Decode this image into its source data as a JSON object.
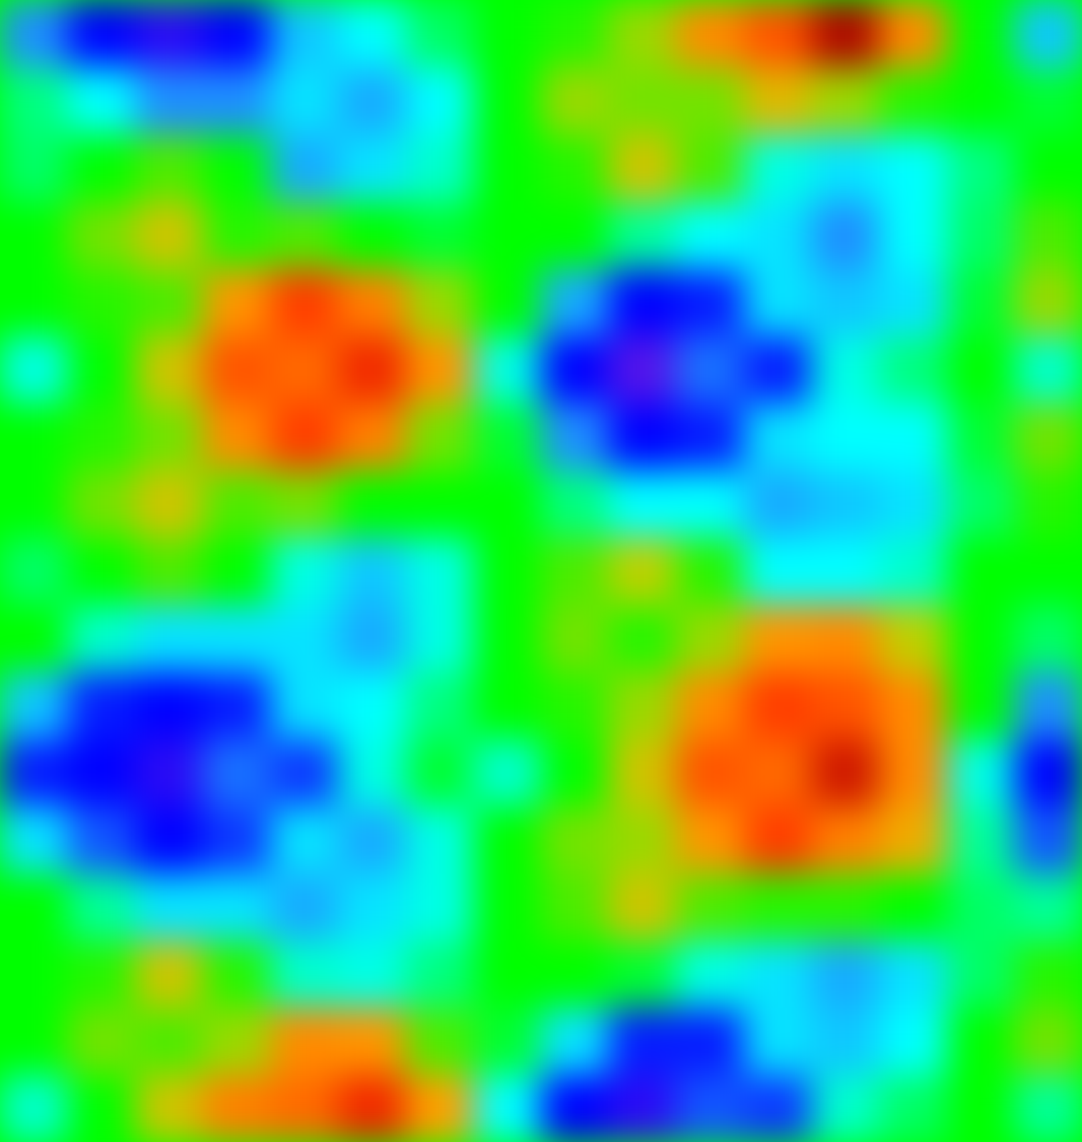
{
  "chart_data": {
    "type": "heatmap",
    "tick_labels": false,
    "zlim": [
      -1,
      1
    ],
    "values": [
      [
        -0.6,
        -0.85,
        -0.9,
        -0.85,
        -0.5,
        -0.4,
        -0.1,
        0,
        0.05,
        0.2,
        0.55,
        0.7,
        0.9,
        0.55,
        0,
        -0.5
      ],
      [
        -0.15,
        -0.4,
        -0.6,
        -0.6,
        -0.45,
        -0.55,
        -0.4,
        0,
        0.2,
        0.15,
        0.15,
        0.35,
        0.2,
        0.05,
        0,
        -0.05
      ],
      [
        -0.1,
        0,
        0.1,
        0,
        -0.55,
        -0.45,
        -0.3,
        0,
        0.05,
        0.3,
        0.1,
        -0.35,
        -0.45,
        -0.4,
        -0.15,
        0
      ],
      [
        0,
        0.15,
        0.3,
        0.05,
        0.1,
        0,
        -0.05,
        0,
        0,
        -0.2,
        -0.4,
        -0.45,
        -0.6,
        -0.4,
        -0.1,
        0.1
      ],
      [
        0,
        0.05,
        0.1,
        0.5,
        0.75,
        0.6,
        0.2,
        0,
        -0.55,
        -0.85,
        -0.8,
        -0.45,
        -0.5,
        -0.45,
        -0.05,
        0.2
      ],
      [
        -0.35,
        0,
        0.3,
        0.7,
        0.65,
        0.8,
        0.5,
        -0.35,
        -0.85,
        -0.95,
        -0.65,
        -0.8,
        -0.35,
        -0.15,
        0,
        -0.3
      ],
      [
        0,
        0.05,
        0.15,
        0.55,
        0.75,
        0.6,
        0.15,
        -0.05,
        -0.6,
        -0.85,
        -0.8,
        -0.45,
        -0.4,
        -0.4,
        -0.05,
        0.15
      ],
      [
        0,
        0.15,
        0.3,
        0.1,
        0.15,
        0,
        0,
        0,
        -0.15,
        -0.4,
        -0.4,
        -0.55,
        -0.5,
        -0.45,
        -0.1,
        0.05
      ],
      [
        -0.1,
        0,
        0.1,
        0,
        -0.35,
        -0.5,
        -0.35,
        0,
        0.1,
        0.25,
        0.05,
        -0.4,
        -0.4,
        -0.3,
        0,
        0
      ],
      [
        0,
        -0.3,
        -0.45,
        -0.45,
        -0.45,
        -0.55,
        -0.35,
        0,
        0.15,
        0.05,
        0.2,
        0.5,
        0.55,
        0.25,
        0,
        -0.1
      ],
      [
        -0.5,
        -0.8,
        -0.85,
        -0.8,
        -0.45,
        -0.4,
        -0.15,
        0,
        0.05,
        0.2,
        0.55,
        0.75,
        0.7,
        0.55,
        0,
        -0.6
      ],
      [
        -0.8,
        -0.85,
        -0.9,
        -0.65,
        -0.75,
        -0.35,
        -0.05,
        -0.3,
        0,
        0.3,
        0.7,
        0.65,
        0.85,
        0.55,
        -0.35,
        -0.85
      ],
      [
        -0.45,
        -0.7,
        -0.85,
        -0.75,
        -0.45,
        -0.55,
        -0.35,
        0,
        0.15,
        0.2,
        0.5,
        0.75,
        0.6,
        0.4,
        -0.2,
        -0.7
      ],
      [
        0,
        -0.2,
        -0.45,
        -0.45,
        -0.55,
        -0.45,
        -0.35,
        0,
        0.1,
        0.3,
        0.1,
        0.05,
        0.05,
        0,
        -0.1,
        -0.2
      ],
      [
        0,
        0.05,
        0.3,
        0.05,
        -0.3,
        -0.35,
        -0.15,
        0,
        0,
        -0.05,
        -0.35,
        -0.45,
        -0.55,
        -0.45,
        -0.1,
        0.05
      ],
      [
        0,
        0.15,
        0.1,
        0.2,
        0.55,
        0.5,
        0.1,
        -0.05,
        -0.45,
        -0.8,
        -0.8,
        -0.45,
        -0.5,
        -0.4,
        0,
        0.15
      ],
      [
        -0.3,
        0,
        0.3,
        0.6,
        0.65,
        0.8,
        0.45,
        -0.4,
        -0.85,
        -0.9,
        -0.7,
        -0.75,
        -0.3,
        -0.1,
        0,
        -0.2
      ]
    ]
  }
}
